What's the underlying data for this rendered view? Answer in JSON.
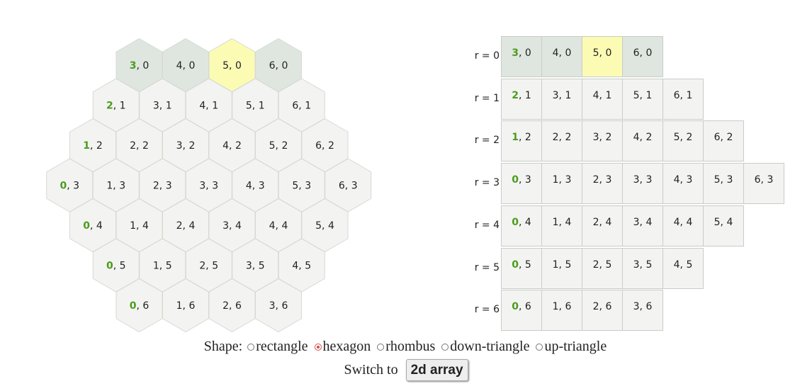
{
  "colors": {
    "cell_fill": "#f3f4f1",
    "top_row_fill": "#dfe6e0",
    "highlight_fill": "#fbfbb4",
    "first_number": "#4b9c1d",
    "border": "#c8ccc6"
  },
  "hex_cells": [
    {
      "row": 0,
      "q": 3,
      "r": 0,
      "first": "3",
      "rest": ", 0"
    },
    {
      "row": 0,
      "q": 4,
      "r": 0,
      "first": "4",
      "rest": ", 0"
    },
    {
      "row": 0,
      "q": 5,
      "r": 0,
      "first": "5",
      "rest": ", 0"
    },
    {
      "row": 0,
      "q": 6,
      "r": 0,
      "first": "6",
      "rest": ", 0"
    },
    {
      "row": 1,
      "q": 2,
      "r": 1,
      "first": "2",
      "rest": ", 1"
    },
    {
      "row": 1,
      "q": 3,
      "r": 1,
      "first": "3",
      "rest": ", 1"
    },
    {
      "row": 1,
      "q": 4,
      "r": 1,
      "first": "4",
      "rest": ", 1"
    },
    {
      "row": 1,
      "q": 5,
      "r": 1,
      "first": "5",
      "rest": ", 1"
    },
    {
      "row": 1,
      "q": 6,
      "r": 1,
      "first": "6",
      "rest": ", 1"
    },
    {
      "row": 2,
      "q": 1,
      "r": 2,
      "first": "1",
      "rest": ", 2"
    },
    {
      "row": 2,
      "q": 2,
      "r": 2,
      "first": "2",
      "rest": ", 2"
    },
    {
      "row": 2,
      "q": 3,
      "r": 2,
      "first": "3",
      "rest": ", 2"
    },
    {
      "row": 2,
      "q": 4,
      "r": 2,
      "first": "4",
      "rest": ", 2"
    },
    {
      "row": 2,
      "q": 5,
      "r": 2,
      "first": "5",
      "rest": ", 2"
    },
    {
      "row": 2,
      "q": 6,
      "r": 2,
      "first": "6",
      "rest": ", 2"
    },
    {
      "row": 3,
      "q": 0,
      "r": 3,
      "first": "0",
      "rest": ", 3"
    },
    {
      "row": 3,
      "q": 1,
      "r": 3,
      "first": "1",
      "rest": ", 3"
    },
    {
      "row": 3,
      "q": 2,
      "r": 3,
      "first": "2",
      "rest": ", 3"
    },
    {
      "row": 3,
      "q": 3,
      "r": 3,
      "first": "3",
      "rest": ", 3"
    },
    {
      "row": 3,
      "q": 4,
      "r": 3,
      "first": "4",
      "rest": ", 3"
    },
    {
      "row": 3,
      "q": 5,
      "r": 3,
      "first": "5",
      "rest": ", 3"
    },
    {
      "row": 3,
      "q": 6,
      "r": 3,
      "first": "6",
      "rest": ", 3"
    },
    {
      "row": 4,
      "q": 0,
      "r": 4,
      "first": "0",
      "rest": ", 4"
    },
    {
      "row": 4,
      "q": 1,
      "r": 4,
      "first": "1",
      "rest": ", 4"
    },
    {
      "row": 4,
      "q": 2,
      "r": 4,
      "first": "2",
      "rest": ", 4"
    },
    {
      "row": 4,
      "q": 3,
      "r": 4,
      "first": "3",
      "rest": ", 4"
    },
    {
      "row": 4,
      "q": 4,
      "r": 4,
      "first": "4",
      "rest": ", 4"
    },
    {
      "row": 4,
      "q": 5,
      "r": 4,
      "first": "5",
      "rest": ", 4"
    },
    {
      "row": 5,
      "q": 0,
      "r": 5,
      "first": "0",
      "rest": ", 5"
    },
    {
      "row": 5,
      "q": 1,
      "r": 5,
      "first": "1",
      "rest": ", 5"
    },
    {
      "row": 5,
      "q": 2,
      "r": 5,
      "first": "2",
      "rest": ", 5"
    },
    {
      "row": 5,
      "q": 3,
      "r": 5,
      "first": "3",
      "rest": ", 5"
    },
    {
      "row": 5,
      "q": 4,
      "r": 5,
      "first": "4",
      "rest": ", 5"
    },
    {
      "row": 6,
      "q": 0,
      "r": 6,
      "first": "0",
      "rest": ", 6"
    },
    {
      "row": 6,
      "q": 1,
      "r": 6,
      "first": "1",
      "rest": ", 6"
    },
    {
      "row": 6,
      "q": 2,
      "r": 6,
      "first": "2",
      "rest": ", 6"
    },
    {
      "row": 6,
      "q": 3,
      "r": 6,
      "first": "3",
      "rest": ", 6"
    }
  ],
  "highlighted": {
    "q": 5,
    "r": 0
  },
  "first_column_q": {
    "0": 3,
    "1": 2,
    "2": 1,
    "3": 0,
    "4": 0,
    "5": 0,
    "6": 0
  },
  "array_rows": [
    {
      "label": "r = 0",
      "cells": [
        {
          "first": "3",
          "rest": ", 0"
        },
        {
          "first": "4",
          "rest": ", 0"
        },
        {
          "first": "5",
          "rest": ", 0"
        },
        {
          "first": "6",
          "rest": ", 0"
        }
      ]
    },
    {
      "label": "r = 1",
      "cells": [
        {
          "first": "2",
          "rest": ", 1"
        },
        {
          "first": "3",
          "rest": ", 1"
        },
        {
          "first": "4",
          "rest": ", 1"
        },
        {
          "first": "5",
          "rest": ", 1"
        },
        {
          "first": "6",
          "rest": ", 1"
        }
      ]
    },
    {
      "label": "r = 2",
      "cells": [
        {
          "first": "1",
          "rest": ", 2"
        },
        {
          "first": "2",
          "rest": ", 2"
        },
        {
          "first": "3",
          "rest": ", 2"
        },
        {
          "first": "4",
          "rest": ", 2"
        },
        {
          "first": "5",
          "rest": ", 2"
        },
        {
          "first": "6",
          "rest": ", 2"
        }
      ]
    },
    {
      "label": "r = 3",
      "cells": [
        {
          "first": "0",
          "rest": ", 3"
        },
        {
          "first": "1",
          "rest": ", 3"
        },
        {
          "first": "2",
          "rest": ", 3"
        },
        {
          "first": "3",
          "rest": ", 3"
        },
        {
          "first": "4",
          "rest": ", 3"
        },
        {
          "first": "5",
          "rest": ", 3"
        },
        {
          "first": "6",
          "rest": ", 3"
        }
      ]
    },
    {
      "label": "r = 4",
      "cells": [
        {
          "first": "0",
          "rest": ", 4"
        },
        {
          "first": "1",
          "rest": ", 4"
        },
        {
          "first": "2",
          "rest": ", 4"
        },
        {
          "first": "3",
          "rest": ", 4"
        },
        {
          "first": "4",
          "rest": ", 4"
        },
        {
          "first": "5",
          "rest": ", 4"
        }
      ]
    },
    {
      "label": "r = 5",
      "cells": [
        {
          "first": "0",
          "rest": ", 5"
        },
        {
          "first": "1",
          "rest": ", 5"
        },
        {
          "first": "2",
          "rest": ", 5"
        },
        {
          "first": "3",
          "rest": ", 5"
        },
        {
          "first": "4",
          "rest": ", 5"
        }
      ]
    },
    {
      "label": "r = 6",
      "cells": [
        {
          "first": "0",
          "rest": ", 6"
        },
        {
          "first": "1",
          "rest": ", 6"
        },
        {
          "first": "2",
          "rest": ", 6"
        },
        {
          "first": "3",
          "rest": ", 6"
        }
      ]
    }
  ],
  "controls": {
    "shape_label": "Shape:",
    "options": [
      {
        "label": "rectangle",
        "checked": false
      },
      {
        "label": "hexagon",
        "checked": true
      },
      {
        "label": "rhombus",
        "checked": false
      },
      {
        "label": "down-triangle",
        "checked": false
      },
      {
        "label": "up-triangle",
        "checked": false
      }
    ],
    "switch_text": "Switch to",
    "switch_button": "2d array"
  }
}
